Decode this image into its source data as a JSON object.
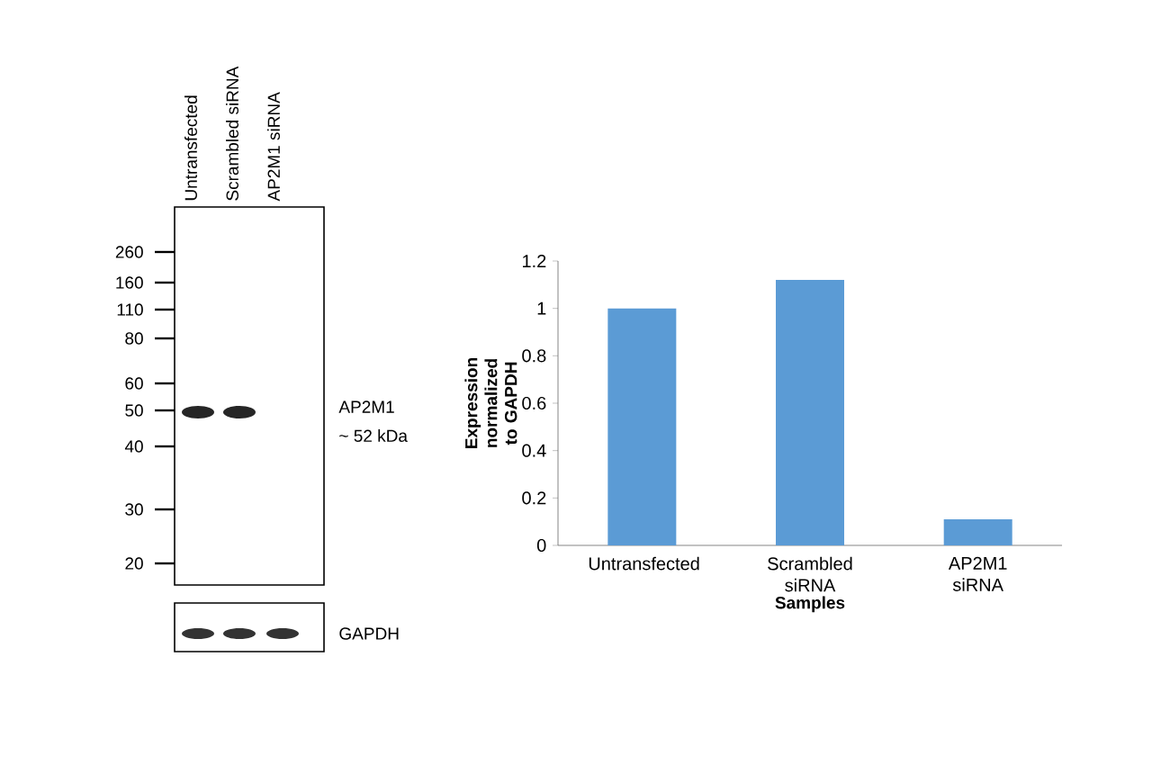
{
  "chart_data": {
    "type": "bar",
    "xlabel": "Samples",
    "ylabel": "Expression  normalized to GAPDH",
    "categories": [
      "Untransfected",
      "Scrambled siRNA",
      "AP2M1 siRNA"
    ],
    "values": [
      1.0,
      1.12,
      0.11
    ],
    "color": "#5b9bd5",
    "ylim": [
      0,
      1.2
    ],
    "yticks": [
      0,
      0.2,
      0.4,
      0.6,
      0.8,
      1,
      1.2
    ],
    "annotations": [
      "Untransfected",
      "Scrambled siRNA",
      "AP2M1 siRNA",
      "260",
      "160",
      "110",
      "80",
      "60",
      "50",
      "40",
      "30",
      "20",
      "AP2M1",
      "~ 52 kDa",
      "GAPDH"
    ]
  }
}
